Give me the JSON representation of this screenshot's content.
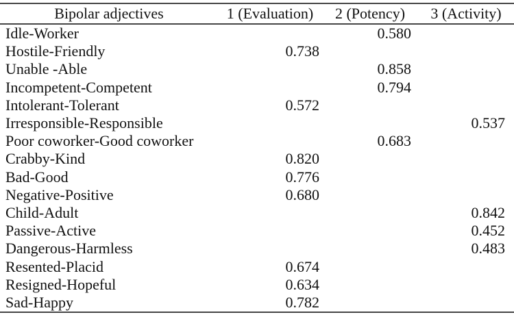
{
  "table": {
    "headers": {
      "adjectives": "Bipolar adjectives",
      "evaluation": "1 (Evaluation)",
      "potency": "2 (Potency)",
      "activity": "3 (Activity)"
    },
    "rows": [
      {
        "label": "Idle-Worker",
        "evaluation": "",
        "potency": "0.580",
        "activity": ""
      },
      {
        "label": "Hostile-Friendly",
        "evaluation": "0.738",
        "potency": "",
        "activity": ""
      },
      {
        "label": "Unable -Able",
        "evaluation": "",
        "potency": "0.858",
        "activity": ""
      },
      {
        "label": "Incompetent-Competent",
        "evaluation": "",
        "potency": "0.794",
        "activity": ""
      },
      {
        "label": "Intolerant-Tolerant",
        "evaluation": "0.572",
        "potency": "",
        "activity": ""
      },
      {
        "label": "Irresponsible-Responsible",
        "evaluation": "",
        "potency": "",
        "activity": "0.537"
      },
      {
        "label": "Poor coworker-Good coworker",
        "evaluation": "",
        "potency": "0.683",
        "activity": ""
      },
      {
        "label": "Crabby-Kind",
        "evaluation": "0.820",
        "potency": "",
        "activity": ""
      },
      {
        "label": "Bad-Good",
        "evaluation": "0.776",
        "potency": "",
        "activity": ""
      },
      {
        "label": "Negative-Positive",
        "evaluation": "0.680",
        "potency": "",
        "activity": ""
      },
      {
        "label": "Child-Adult",
        "evaluation": "",
        "potency": "",
        "activity": "0.842"
      },
      {
        "label": "Passive-Active",
        "evaluation": "",
        "potency": "",
        "activity": "0.452"
      },
      {
        "label": "Dangerous-Harmless",
        "evaluation": "",
        "potency": "",
        "activity": "0.483"
      },
      {
        "label": "Resented-Placid",
        "evaluation": "0.674",
        "potency": "",
        "activity": ""
      },
      {
        "label": "Resigned-Hopeful",
        "evaluation": "0.634",
        "potency": "",
        "activity": ""
      },
      {
        "label": "Sad-Happy",
        "evaluation": "0.782",
        "potency": "",
        "activity": ""
      }
    ]
  },
  "colors": {
    "rule": "#454545",
    "text": "#101010",
    "background": "#ffffff"
  }
}
